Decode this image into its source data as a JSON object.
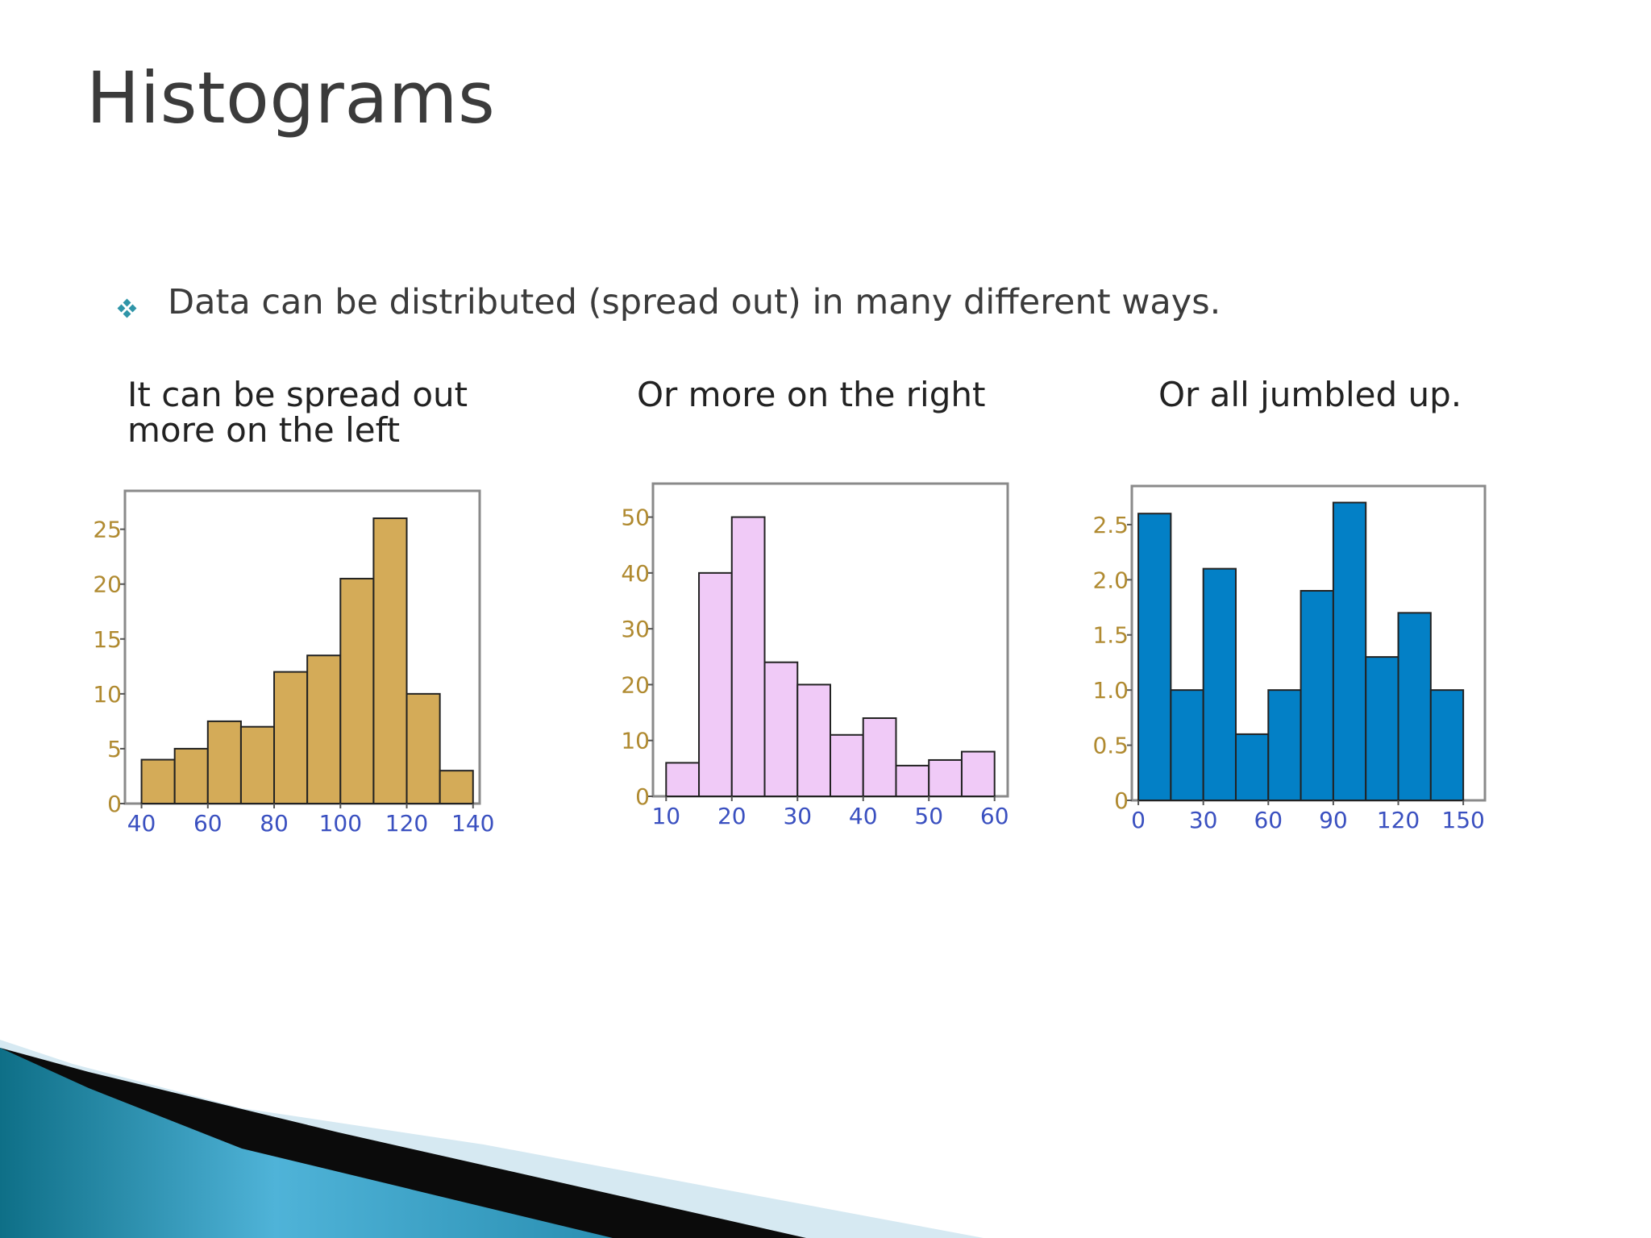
{
  "slide": {
    "title": "Histograms",
    "bullet": "Data can be distributed (spread out) in many different ways.",
    "captions": [
      [
        "It can be spread out",
        "more on the left"
      ],
      [
        "Or more on the right"
      ],
      [
        "Or all jumbled up."
      ]
    ]
  },
  "colors": {
    "bullet": "#2f95a8",
    "axis_tick_text": "#b08a30",
    "x_tick_text": "#3a50c0"
  },
  "chart_data": [
    {
      "type": "bar",
      "bin_edges": [
        40,
        50,
        60,
        70,
        80,
        90,
        100,
        110,
        120,
        130,
        140
      ],
      "values": [
        4,
        5,
        7.5,
        7,
        12,
        13.5,
        20.5,
        26,
        10,
        3
      ],
      "x_ticks": [
        40,
        60,
        80,
        100,
        120,
        140
      ],
      "y_ticks": [
        0,
        5,
        10,
        15,
        20,
        25
      ],
      "xlim": [
        35,
        142
      ],
      "ylim": [
        0,
        28.5
      ],
      "color": "#d4ab58"
    },
    {
      "type": "bar",
      "bin_edges": [
        10,
        15,
        20,
        25,
        30,
        35,
        40,
        45,
        50,
        55,
        60
      ],
      "values": [
        6,
        40,
        50,
        24,
        20,
        11,
        14,
        5.5,
        6.5,
        8
      ],
      "x_ticks": [
        10,
        20,
        30,
        40,
        50,
        60
      ],
      "y_ticks": [
        0,
        10,
        20,
        30,
        40,
        50
      ],
      "xlim": [
        8,
        62
      ],
      "ylim": [
        0,
        56
      ],
      "color": "#f0caf7"
    },
    {
      "type": "bar",
      "bin_edges": [
        0,
        15,
        30,
        45,
        60,
        75,
        90,
        105,
        120,
        135,
        150
      ],
      "values": [
        2.6,
        1.0,
        2.1,
        0.6,
        1.0,
        1.9,
        2.7,
        1.3,
        1.7,
        1.0
      ],
      "x_ticks": [
        0,
        30,
        60,
        90,
        120,
        150
      ],
      "y_ticks": [
        "0",
        "0.5",
        "1.0",
        "1.5",
        "2.0",
        "2.5"
      ],
      "xlim": [
        -3,
        160
      ],
      "ylim": [
        0,
        2.85
      ],
      "color": "#0380c6"
    }
  ]
}
